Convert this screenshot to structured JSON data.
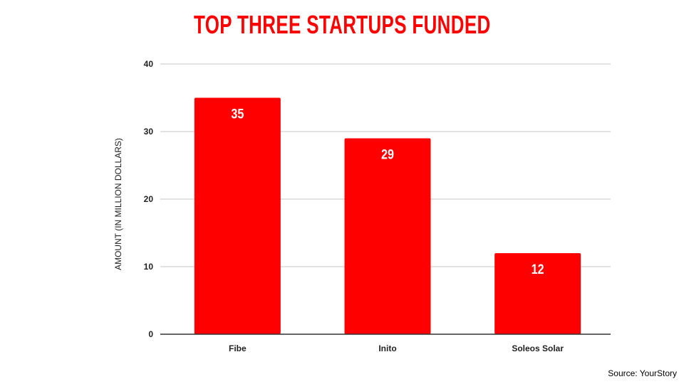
{
  "chart_data": {
    "type": "bar",
    "title": "TOP THREE STARTUPS FUNDED",
    "categories": [
      "Fibe",
      "Inito",
      "Soleos Solar"
    ],
    "values": [
      35,
      29,
      12
    ],
    "xlabel": "",
    "ylabel": "AMOUNT (IN MILLION DOLLARS)",
    "ylim": [
      0,
      40
    ],
    "yticks": [
      0,
      10,
      20,
      30,
      40
    ],
    "grid": true,
    "bar_color": "#ff0000",
    "data_labels": [
      "35",
      "29",
      "12"
    ]
  },
  "source": "Source: YourStory"
}
